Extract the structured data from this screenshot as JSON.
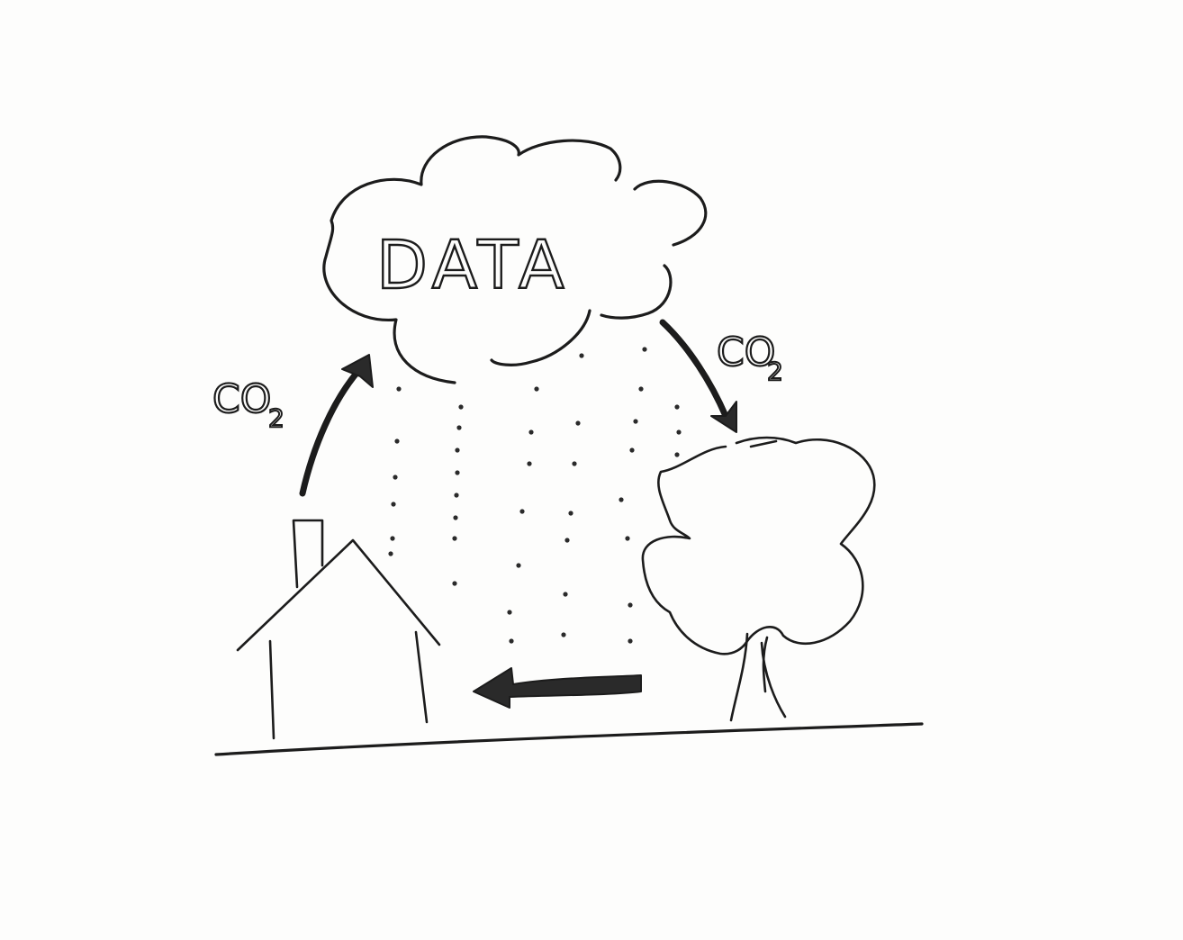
{
  "cloud": {
    "label": "DATA"
  },
  "labels": {
    "left_co2_main": "CO",
    "left_co2_sub": "2",
    "right_co2_main": "CO",
    "right_co2_sub": "2"
  },
  "colors": {
    "ink": "#1c1c1c",
    "paper": "#fdfdfc"
  },
  "icons": {
    "cloud": "cloud-icon",
    "house": "house-icon",
    "tree": "tree-icon",
    "rain": "rain-icon"
  }
}
